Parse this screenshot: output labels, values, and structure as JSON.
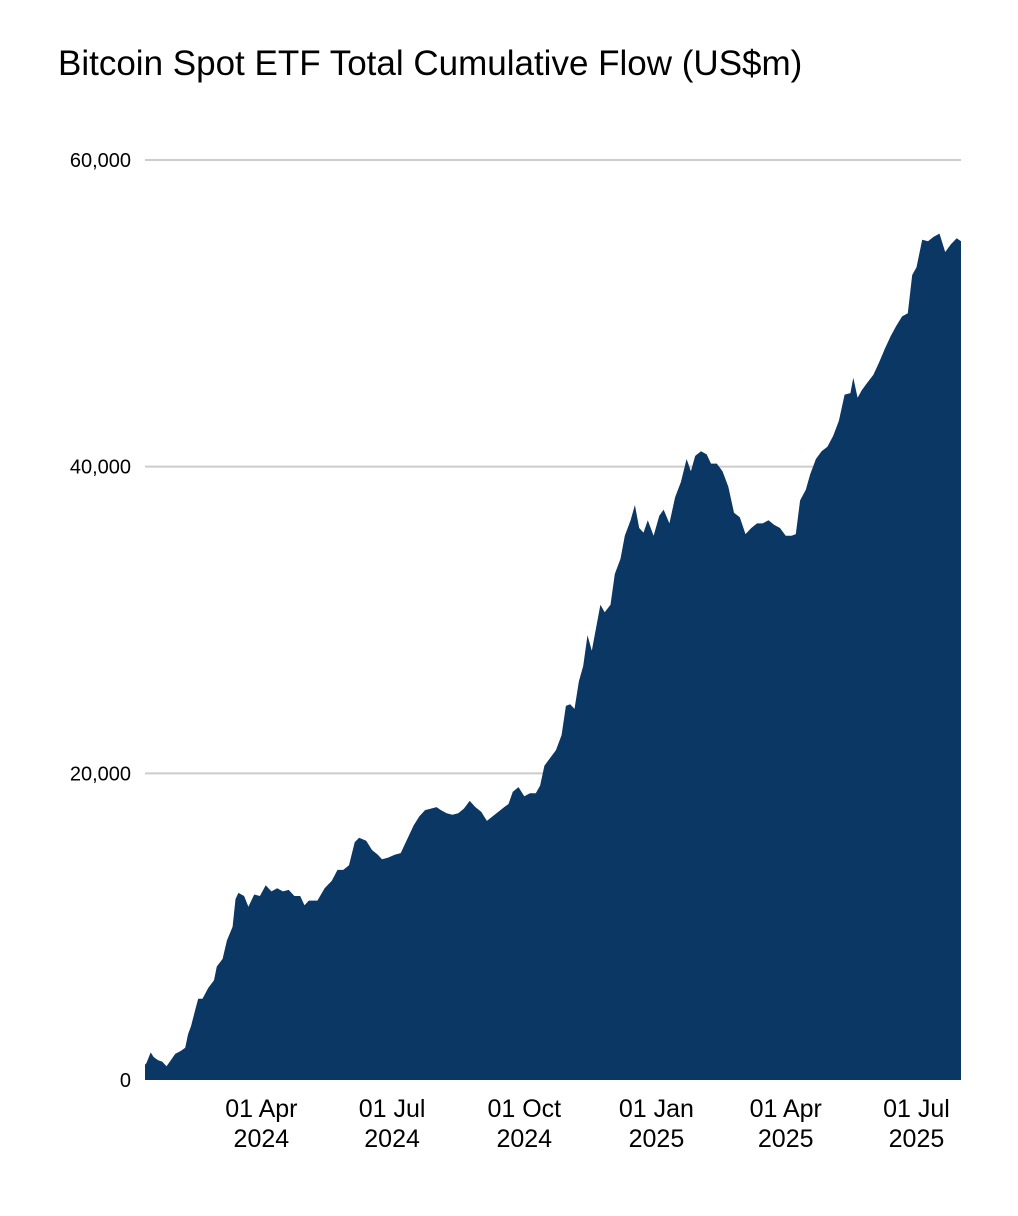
{
  "chart_data": {
    "type": "area",
    "title": "Bitcoin Spot ETF Total Cumulative Flow (US$m)",
    "xlabel": "",
    "ylabel": "",
    "ylim": [
      0,
      60000
    ],
    "grid": true,
    "legend": "none",
    "color": "#0a3763",
    "gridColor": "#cccccc",
    "yticks": [
      {
        "value": 0,
        "label": "0"
      },
      {
        "value": 20000,
        "label": "20,000"
      },
      {
        "value": 40000,
        "label": "40,000"
      },
      {
        "value": 60000,
        "label": "60,000"
      }
    ],
    "xticks": [
      {
        "date": "2024-04-01",
        "line1": "01 Apr",
        "line2": "2024"
      },
      {
        "date": "2024-07-01",
        "line1": "01 Jul",
        "line2": "2024"
      },
      {
        "date": "2024-10-01",
        "line1": "01 Oct",
        "line2": "2024"
      },
      {
        "date": "2025-01-01",
        "line1": "01 Jan",
        "line2": "2025"
      },
      {
        "date": "2025-04-01",
        "line1": "01 Apr",
        "line2": "2025"
      },
      {
        "date": "2025-07-01",
        "line1": "01 Jul",
        "line2": "2025"
      }
    ],
    "series": [
      {
        "points": [
          [
            "2024-01-11",
            1000
          ],
          [
            "2024-01-12",
            1100
          ],
          [
            "2024-01-15",
            1800
          ],
          [
            "2024-01-17",
            1500
          ],
          [
            "2024-01-20",
            1300
          ],
          [
            "2024-01-23",
            1200
          ],
          [
            "2024-01-26",
            900
          ],
          [
            "2024-01-29",
            1300
          ],
          [
            "2024-02-01",
            1700
          ],
          [
            "2024-02-05",
            1900
          ],
          [
            "2024-02-08",
            2100
          ],
          [
            "2024-02-10",
            3000
          ],
          [
            "2024-02-12",
            3500
          ],
          [
            "2024-02-15",
            4600
          ],
          [
            "2024-02-17",
            5300
          ],
          [
            "2024-02-20",
            5300
          ],
          [
            "2024-02-24",
            6000
          ],
          [
            "2024-02-28",
            6500
          ],
          [
            "2024-03-01",
            7400
          ],
          [
            "2024-03-05",
            7900
          ],
          [
            "2024-03-08",
            9100
          ],
          [
            "2024-03-12",
            10000
          ],
          [
            "2024-03-14",
            11800
          ],
          [
            "2024-03-16",
            12200
          ],
          [
            "2024-03-20",
            12000
          ],
          [
            "2024-03-23",
            11300
          ],
          [
            "2024-03-27",
            12100
          ],
          [
            "2024-03-31",
            12000
          ],
          [
            "2024-04-04",
            12700
          ],
          [
            "2024-04-08",
            12300
          ],
          [
            "2024-04-12",
            12500
          ],
          [
            "2024-04-16",
            12300
          ],
          [
            "2024-04-20",
            12400
          ],
          [
            "2024-04-24",
            12000
          ],
          [
            "2024-04-28",
            12000
          ],
          [
            "2024-05-01",
            11400
          ],
          [
            "2024-05-04",
            11700
          ],
          [
            "2024-05-10",
            11700
          ],
          [
            "2024-05-15",
            12500
          ],
          [
            "2024-05-20",
            13000
          ],
          [
            "2024-05-24",
            13700
          ],
          [
            "2024-05-28",
            13700
          ],
          [
            "2024-06-01",
            14000
          ],
          [
            "2024-06-05",
            15500
          ],
          [
            "2024-06-08",
            15800
          ],
          [
            "2024-06-13",
            15600
          ],
          [
            "2024-06-17",
            15000
          ],
          [
            "2024-06-21",
            14700
          ],
          [
            "2024-06-24",
            14400
          ],
          [
            "2024-06-28",
            14500
          ],
          [
            "2024-07-03",
            14700
          ],
          [
            "2024-07-07",
            14800
          ],
          [
            "2024-07-10",
            15400
          ],
          [
            "2024-07-13",
            16000
          ],
          [
            "2024-07-16",
            16600
          ],
          [
            "2024-07-20",
            17200
          ],
          [
            "2024-07-24",
            17600
          ],
          [
            "2024-07-28",
            17700
          ],
          [
            "2024-08-01",
            17800
          ],
          [
            "2024-08-04",
            17600
          ],
          [
            "2024-08-08",
            17400
          ],
          [
            "2024-08-12",
            17300
          ],
          [
            "2024-08-16",
            17400
          ],
          [
            "2024-08-20",
            17700
          ],
          [
            "2024-08-24",
            18200
          ],
          [
            "2024-08-28",
            17800
          ],
          [
            "2024-09-01",
            17500
          ],
          [
            "2024-09-05",
            16900
          ],
          [
            "2024-09-09",
            17200
          ],
          [
            "2024-09-13",
            17500
          ],
          [
            "2024-09-17",
            17800
          ],
          [
            "2024-09-20",
            18000
          ],
          [
            "2024-09-23",
            18800
          ],
          [
            "2024-09-27",
            19100
          ],
          [
            "2024-10-01",
            18500
          ],
          [
            "2024-10-05",
            18700
          ],
          [
            "2024-10-09",
            18700
          ],
          [
            "2024-10-12",
            19200
          ],
          [
            "2024-10-15",
            20500
          ],
          [
            "2024-10-19",
            21000
          ],
          [
            "2024-10-23",
            21500
          ],
          [
            "2024-10-27",
            22500
          ],
          [
            "2024-10-30",
            24400
          ],
          [
            "2024-11-02",
            24500
          ],
          [
            "2024-11-05",
            24200
          ],
          [
            "2024-11-08",
            26000
          ],
          [
            "2024-11-11",
            27000
          ],
          [
            "2024-11-14",
            29000
          ],
          [
            "2024-11-17",
            28000
          ],
          [
            "2024-11-20",
            29500
          ],
          [
            "2024-11-23",
            31000
          ],
          [
            "2024-11-26",
            30500
          ],
          [
            "2024-11-30",
            31000
          ],
          [
            "2024-12-03",
            33000
          ],
          [
            "2024-12-07",
            34000
          ],
          [
            "2024-12-10",
            35500
          ],
          [
            "2024-12-14",
            36500
          ],
          [
            "2024-12-17",
            37500
          ],
          [
            "2024-12-20",
            36000
          ],
          [
            "2024-12-23",
            35700
          ],
          [
            "2024-12-26",
            36500
          ],
          [
            "2024-12-30",
            35500
          ],
          [
            "2025-01-03",
            36800
          ],
          [
            "2025-01-06",
            37200
          ],
          [
            "2025-01-10",
            36300
          ],
          [
            "2025-01-14",
            38000
          ],
          [
            "2025-01-18",
            39000
          ],
          [
            "2025-01-22",
            40500
          ],
          [
            "2025-01-25",
            39700
          ],
          [
            "2025-01-28",
            40700
          ],
          [
            "2025-02-01",
            41000
          ],
          [
            "2025-02-05",
            40800
          ],
          [
            "2025-02-08",
            40200
          ],
          [
            "2025-02-12",
            40200
          ],
          [
            "2025-02-16",
            39700
          ],
          [
            "2025-02-20",
            38700
          ],
          [
            "2025-02-24",
            37000
          ],
          [
            "2025-02-28",
            36700
          ],
          [
            "2025-03-04",
            35600
          ],
          [
            "2025-03-08",
            36000
          ],
          [
            "2025-03-12",
            36300
          ],
          [
            "2025-03-16",
            36300
          ],
          [
            "2025-03-20",
            36500
          ],
          [
            "2025-03-24",
            36200
          ],
          [
            "2025-03-28",
            36000
          ],
          [
            "2025-04-01",
            35500
          ],
          [
            "2025-04-05",
            35500
          ],
          [
            "2025-04-08",
            35600
          ],
          [
            "2025-04-11",
            37800
          ],
          [
            "2025-04-15",
            38500
          ],
          [
            "2025-04-18",
            39500
          ],
          [
            "2025-04-22",
            40500
          ],
          [
            "2025-04-26",
            41000
          ],
          [
            "2025-04-30",
            41300
          ],
          [
            "2025-05-04",
            42000
          ],
          [
            "2025-05-08",
            43000
          ],
          [
            "2025-05-12",
            44700
          ],
          [
            "2025-05-16",
            44800
          ],
          [
            "2025-05-18",
            45800
          ],
          [
            "2025-05-21",
            44500
          ],
          [
            "2025-05-24",
            45000
          ],
          [
            "2025-05-28",
            45500
          ],
          [
            "2025-06-01",
            46000
          ],
          [
            "2025-06-05",
            46800
          ],
          [
            "2025-06-09",
            47700
          ],
          [
            "2025-06-13",
            48500
          ],
          [
            "2025-06-17",
            49200
          ],
          [
            "2025-06-21",
            49800
          ],
          [
            "2025-06-25",
            50000
          ],
          [
            "2025-06-28",
            52500
          ],
          [
            "2025-07-01",
            53000
          ],
          [
            "2025-07-05",
            54800
          ],
          [
            "2025-07-09",
            54700
          ],
          [
            "2025-07-13",
            55000
          ],
          [
            "2025-07-17",
            55200
          ],
          [
            "2025-07-21",
            54000
          ],
          [
            "2025-07-25",
            54500
          ],
          [
            "2025-07-29",
            54900
          ],
          [
            "2025-08-01",
            54700
          ]
        ]
      }
    ]
  }
}
